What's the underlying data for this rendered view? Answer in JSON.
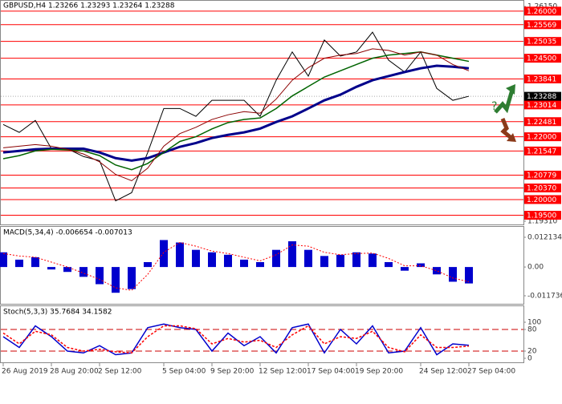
{
  "chart_data": [
    {
      "type": "line",
      "title": "GBPUSD,H4  1.23266 1.23293 1.23264 1.23288",
      "ylim": [
        1.1931,
        1.2615
      ],
      "yticks": [
        {
          "value": 1.2615,
          "label": "1.26150"
        },
        {
          "value": 1.1931,
          "label": "1.19310"
        }
      ],
      "levels": [
        {
          "value": 1.26,
          "label": "1.26000"
        },
        {
          "value": 1.25569,
          "label": "1.25569"
        },
        {
          "value": 1.25035,
          "label": "1.25035"
        },
        {
          "value": 1.245,
          "label": "1.24500"
        },
        {
          "value": 1.23841,
          "label": "1.23841"
        },
        {
          "value": 1.23014,
          "label": "1.23014"
        },
        {
          "value": 1.22481,
          "label": "1.22481"
        },
        {
          "value": 1.22,
          "label": "1.22000"
        },
        {
          "value": 1.21547,
          "label": "1.21547"
        },
        {
          "value": 1.20779,
          "label": "1.20779"
        },
        {
          "value": 1.2037,
          "label": "1.20370"
        },
        {
          "value": 1.2,
          "label": "1.20000"
        },
        {
          "value": 1.195,
          "label": "1.19500"
        }
      ],
      "level_color": "#ff0000",
      "current_price": 1.23288,
      "annotation": "?",
      "series": [
        {
          "color": "#000000",
          "values": [
            1.2239,
            1.2214,
            1.2252,
            1.2162,
            1.2162,
            1.2137,
            1.2124,
            1.1996,
            1.2022,
            1.215,
            1.229,
            1.229,
            1.2265,
            1.2316,
            1.2316,
            1.2316,
            1.2265,
            1.238,
            1.247,
            1.2393,
            1.2508,
            1.2457,
            1.247,
            1.2533,
            1.2444,
            1.2406,
            1.247,
            1.2354,
            1.2316,
            1.2329
          ]
        },
        {
          "color": "#00008b",
          "values": [
            1.215,
            1.2155,
            1.216,
            1.2162,
            1.2162,
            1.2162,
            1.215,
            1.2132,
            1.2124,
            1.2132,
            1.215,
            1.2168,
            1.218,
            1.2196,
            1.2206,
            1.2214,
            1.2226,
            1.2247,
            1.2265,
            1.229,
            1.2316,
            1.2334,
            1.2359,
            1.238,
            1.2393,
            1.2406,
            1.2418,
            1.2426,
            1.2423,
            1.2418
          ]
        },
        {
          "color": "#006400",
          "values": [
            1.213,
            1.214,
            1.2155,
            1.216,
            1.2158,
            1.2155,
            1.214,
            1.211,
            1.2095,
            1.2115,
            1.215,
            1.2185,
            1.22,
            1.2225,
            1.2245,
            1.2255,
            1.226,
            1.229,
            1.233,
            1.236,
            1.239,
            1.241,
            1.243,
            1.245,
            1.246,
            1.2465,
            1.247,
            1.246,
            1.245,
            1.244
          ]
        },
        {
          "color": "#8b0000",
          "values": [
            1.2165,
            1.217,
            1.2175,
            1.217,
            1.216,
            1.2145,
            1.212,
            1.208,
            1.206,
            1.21,
            1.217,
            1.221,
            1.223,
            1.2255,
            1.227,
            1.228,
            1.2275,
            1.232,
            1.238,
            1.242,
            1.245,
            1.246,
            1.2465,
            1.248,
            1.2475,
            1.246,
            1.247,
            1.246,
            1.243,
            1.241
          ]
        }
      ]
    },
    {
      "type": "bar",
      "title": "MACD(5,34,4) -0.006654 -0.007013",
      "ylim": [
        -0.011736,
        0.012134
      ],
      "yticks": [
        0.012134,
        {
          "value": 0,
          "label": "0.00"
        },
        -0.011736
      ],
      "series": [
        {
          "color": "#0000cd",
          "values": [
            0.006,
            0.003,
            0.004,
            -0.001,
            -0.002,
            -0.004,
            -0.007,
            -0.0105,
            -0.009,
            0.002,
            0.011,
            0.01,
            0.007,
            0.006,
            0.005,
            0.003,
            0.002,
            0.007,
            0.0105,
            0.007,
            0.0045,
            0.005,
            0.006,
            0.0055,
            0.002,
            -0.0015,
            0.0015,
            -0.003,
            -0.006,
            -0.0067
          ]
        },
        {
          "color": "#ff0000",
          "values": [
            0.0055,
            0.0045,
            0.004,
            0.002,
            0,
            -0.0025,
            -0.005,
            -0.0085,
            -0.0095,
            -0.003,
            0.006,
            0.01,
            0.0085,
            0.0065,
            0.0055,
            0.004,
            0.0025,
            0.005,
            0.009,
            0.0085,
            0.006,
            0.005,
            0.0055,
            0.0057,
            0.0035,
            0.0005,
            0.0005,
            -0.0015,
            -0.0045,
            -0.006
          ]
        }
      ]
    },
    {
      "type": "line",
      "title": "Stoch(5,3,3) 35.7684 34.1582",
      "ylim": [
        0,
        100
      ],
      "yticks": [
        100,
        80,
        20,
        0
      ],
      "levels": [
        80,
        20
      ],
      "categories": [
        "26 Aug 2019",
        null,
        null,
        "28 Aug 20:00",
        null,
        null,
        "2 Sep 12:00",
        null,
        null,
        null,
        "5 Sep 04:00",
        null,
        null,
        "9 Sep 20:00",
        null,
        null,
        "12 Sep 12:00",
        null,
        null,
        "17 Sep 04:00",
        null,
        null,
        "19 Sep 20:00",
        null,
        null,
        null,
        "24 Sep 12:00",
        null,
        null,
        "27 Sep 04:00"
      ],
      "series": [
        {
          "color": "#0000cd",
          "values": [
            60,
            30,
            90,
            60,
            20,
            15,
            35,
            10,
            15,
            85,
            95,
            85,
            80,
            20,
            70,
            35,
            60,
            15,
            85,
            95,
            15,
            80,
            40,
            90,
            15,
            20,
            85,
            10,
            40,
            36
          ]
        },
        {
          "color": "#ff0000",
          "values": [
            70,
            40,
            75,
            65,
            30,
            20,
            25,
            18,
            15,
            60,
            90,
            90,
            82,
            40,
            55,
            45,
            50,
            30,
            65,
            90,
            40,
            60,
            55,
            75,
            30,
            18,
            65,
            30,
            30,
            34
          ]
        }
      ]
    }
  ]
}
